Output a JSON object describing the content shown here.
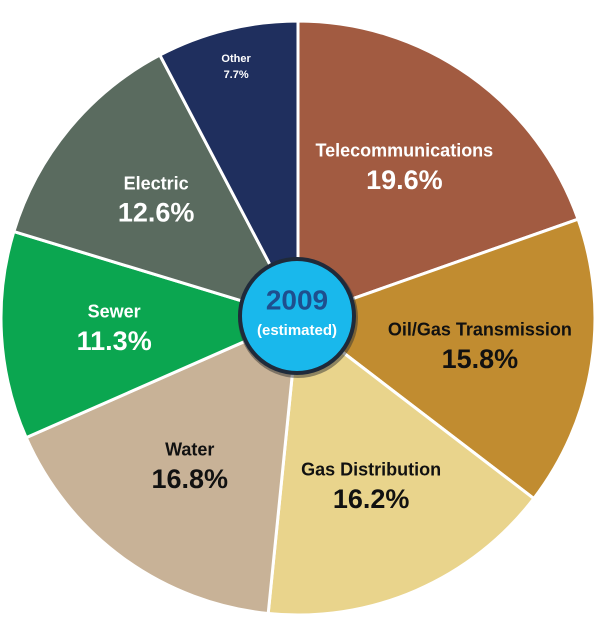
{
  "chart_data": {
    "type": "pie",
    "categories": [
      "Telecommunications",
      "Oil/Gas Transmission",
      "Gas Distribution",
      "Water",
      "Sewer",
      "Electric",
      "Other"
    ],
    "values": [
      19.6,
      15.8,
      16.2,
      16.8,
      11.3,
      12.6,
      7.7
    ],
    "value_labels": [
      "19.6%",
      "15.8%",
      "16.2%",
      "16.8%",
      "11.3%",
      "12.6%",
      "7.7%"
    ],
    "colors": [
      "#a25b41",
      "#c18c30",
      "#e9d48c",
      "#c8b297",
      "#0ba650",
      "#5a6b5f",
      "#1f2f5e"
    ],
    "label_colors": [
      "#ffffff",
      "#111111",
      "#111111",
      "#111111",
      "#ffffff",
      "#ffffff",
      "#ffffff"
    ],
    "center_title": "2009",
    "center_subtitle": "(estimated)"
  }
}
